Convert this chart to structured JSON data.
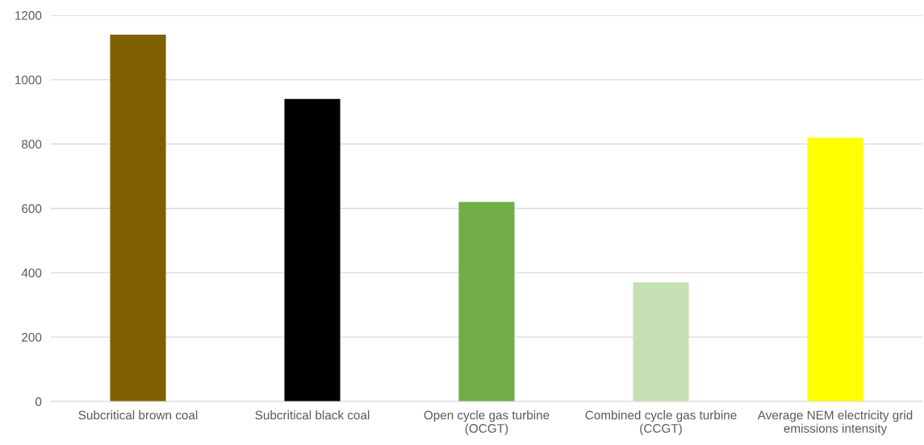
{
  "chart_data": {
    "type": "bar",
    "categories": [
      "Subcritical brown coal",
      "Subcritical black coal",
      "Open cycle gas turbine\n(OCGT)",
      "Combined cycle gas turbine\n(CCGT)",
      "Average NEM electricity grid\nemissions intensity"
    ],
    "values": [
      1140,
      940,
      620,
      370,
      820
    ],
    "colors": [
      "#7f6000",
      "#000000",
      "#70ad47",
      "#c5e0b4",
      "#ffff00"
    ],
    "ylim": [
      0,
      1200
    ],
    "yticks": [
      0,
      200,
      400,
      600,
      800,
      1000,
      1200
    ],
    "grid": "y"
  }
}
